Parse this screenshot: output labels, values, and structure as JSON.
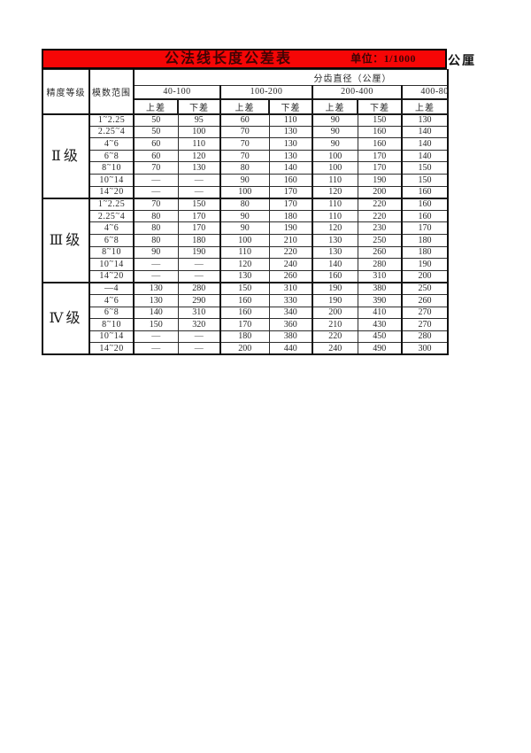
{
  "title_bar": {
    "title": "公法线长度公差表",
    "unit_label": "单位：1/1000",
    "unit_suffix": "公厘",
    "bar_color": "#f60606",
    "title_color": "#3f0404"
  },
  "table": {
    "corner_headers": [
      "精度等级",
      "模数范围"
    ],
    "diameter_header": "分齿直径（公厘）",
    "range_groups": [
      {
        "label": "40-100",
        "cols": 2
      },
      {
        "label": "100-200",
        "cols": 2
      },
      {
        "label": "200-400",
        "cols": 2
      },
      {
        "label": "400-80",
        "cols": 1
      }
    ],
    "sub_headers": [
      "上差",
      "下差",
      "上差",
      "下差",
      "上差",
      "下差",
      "上差"
    ],
    "empty_cell_symbol": "—",
    "sections": [
      {
        "grade": "Ⅱ级",
        "rows": [
          {
            "module": "1~2.25",
            "values": [
              "50",
              "95",
              "60",
              "110",
              "90",
              "150",
              "130"
            ]
          },
          {
            "module": "2.25~4",
            "values": [
              "50",
              "100",
              "70",
              "130",
              "90",
              "160",
              "140"
            ]
          },
          {
            "module": "4~6",
            "values": [
              "60",
              "110",
              "70",
              "130",
              "90",
              "160",
              "140"
            ]
          },
          {
            "module": "6~8",
            "values": [
              "60",
              "120",
              "70",
              "130",
              "100",
              "170",
              "140"
            ]
          },
          {
            "module": "8~10",
            "values": [
              "70",
              "130",
              "80",
              "140",
              "100",
              "170",
              "150"
            ]
          },
          {
            "module": "10~14",
            "values": [
              "—",
              "—",
              "90",
              "160",
              "110",
              "190",
              "150"
            ]
          },
          {
            "module": "14~20",
            "values": [
              "—",
              "—",
              "100",
              "170",
              "120",
              "200",
              "160"
            ]
          }
        ]
      },
      {
        "grade": "Ⅲ级",
        "rows": [
          {
            "module": "1~2.25",
            "values": [
              "70",
              "150",
              "80",
              "170",
              "110",
              "220",
              "160"
            ]
          },
          {
            "module": "2.25~4",
            "values": [
              "80",
              "170",
              "90",
              "180",
              "110",
              "220",
              "160"
            ]
          },
          {
            "module": "4~6",
            "values": [
              "80",
              "170",
              "90",
              "190",
              "120",
              "230",
              "170"
            ]
          },
          {
            "module": "6~8",
            "values": [
              "80",
              "180",
              "100",
              "210",
              "130",
              "250",
              "180"
            ]
          },
          {
            "module": "8~10",
            "values": [
              "90",
              "190",
              "110",
              "220",
              "130",
              "260",
              "180"
            ]
          },
          {
            "module": "10~14",
            "values": [
              "—",
              "—",
              "120",
              "240",
              "140",
              "280",
              "190"
            ]
          },
          {
            "module": "14~20",
            "values": [
              "—",
              "—",
              "130",
              "260",
              "160",
              "310",
              "200"
            ]
          }
        ]
      },
      {
        "grade": "Ⅳ级",
        "rows": [
          {
            "module": "—4",
            "values": [
              "130",
              "280",
              "150",
              "310",
              "190",
              "380",
              "250"
            ]
          },
          {
            "module": "4~6",
            "values": [
              "130",
              "290",
              "160",
              "330",
              "190",
              "390",
              "260"
            ]
          },
          {
            "module": "6~8",
            "values": [
              "140",
              "310",
              "160",
              "340",
              "200",
              "410",
              "270"
            ]
          },
          {
            "module": "8~10",
            "values": [
              "150",
              "320",
              "170",
              "360",
              "210",
              "430",
              "270"
            ]
          },
          {
            "module": "10~14",
            "values": [
              "—",
              "—",
              "180",
              "380",
              "220",
              "450",
              "280"
            ]
          },
          {
            "module": "14~20",
            "values": [
              "—",
              "—",
              "200",
              "440",
              "240",
              "490",
              "300"
            ]
          }
        ]
      }
    ]
  }
}
